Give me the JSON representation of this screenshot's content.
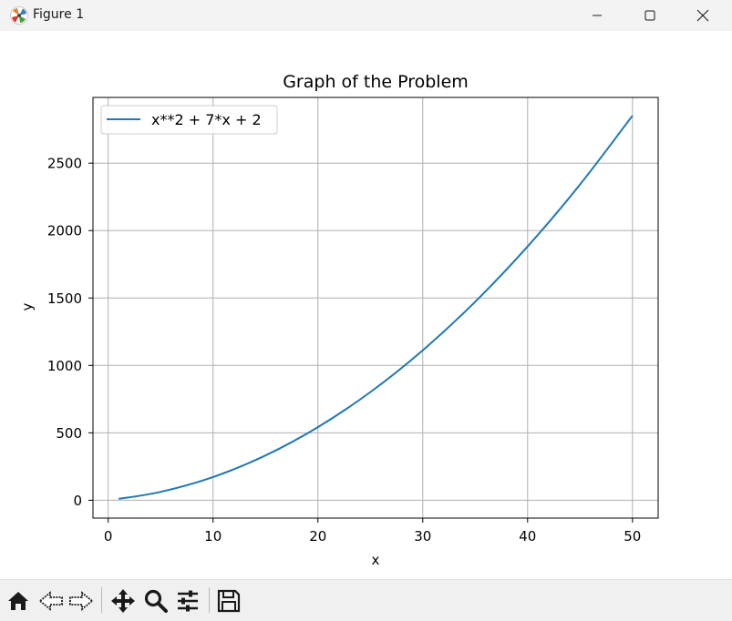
{
  "window": {
    "title": "Figure 1",
    "icon": "matplotlib-app-icon",
    "controls": [
      "minimize-icon",
      "maximize-icon",
      "close-icon"
    ]
  },
  "toolbar": {
    "buttons": [
      "home-icon",
      "back-arrow-icon",
      "forward-arrow-icon",
      "pan-move-icon",
      "zoom-magnifier-icon",
      "configure-subplots-icon",
      "save-floppy-icon"
    ]
  },
  "chart_data": {
    "type": "line",
    "title": "Graph of the Problem",
    "xlabel": "x",
    "ylabel": "y",
    "xlim": [
      -1.45,
      52.45
    ],
    "ylim": [
      -132.55,
      2987.55
    ],
    "x_ticks": [
      0,
      10,
      20,
      30,
      40,
      50
    ],
    "x_tick_labels": [
      "0",
      "10",
      "20",
      "30",
      "40",
      "50"
    ],
    "y_ticks": [
      0,
      500,
      1000,
      1500,
      2000,
      2500
    ],
    "y_tick_labels": [
      "0",
      "500",
      "1000",
      "1500",
      "2000",
      "2500"
    ],
    "grid": true,
    "legend_position": "upper-left",
    "series": [
      {
        "name": "x**2 + 7*x + 2",
        "color": "#1f77b4",
        "x": [
          1,
          5,
          10,
          15,
          20,
          25,
          30,
          35,
          40,
          45,
          50
        ],
        "y": [
          10,
          62,
          172,
          332,
          542,
          802,
          1112,
          1472,
          1882,
          2342,
          2852
        ]
      }
    ]
  }
}
